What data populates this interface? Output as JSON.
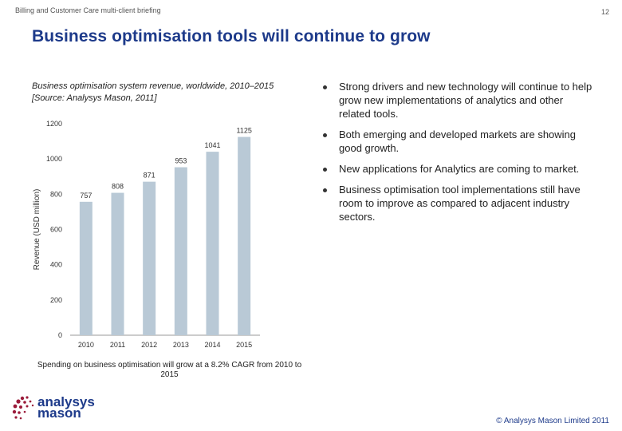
{
  "header": {
    "left": "Billing and Customer Care multi-client briefing",
    "page_number": "12"
  },
  "title": "Business optimisation tools will continue to grow",
  "chart_caption": "Business optimisation system revenue, worldwide, 2010–2015 [Source: Analysys Mason, 2011]",
  "chart_data": {
    "type": "bar",
    "categories": [
      "2010",
      "2011",
      "2012",
      "2013",
      "2014",
      "2015"
    ],
    "values": [
      757,
      808,
      871,
      953,
      1041,
      1125
    ],
    "data_labels": [
      "757",
      "808",
      "871",
      "953",
      "1041",
      "1125"
    ],
    "title": "",
    "xlabel": "",
    "ylabel": "Revenue (USD million)",
    "ylim": [
      0,
      1200
    ],
    "yticks": [
      "0",
      "200",
      "400",
      "600",
      "800",
      "1000",
      "1200"
    ],
    "bar_color": "#b9c9d6",
    "grid": false
  },
  "chart_footnote": "Spending on business optimisation will grow at a 8.2% CAGR from 2010 to 2015",
  "bullets": [
    "Strong drivers and new technology will continue to help grow new implementations of analytics and other related tools.",
    "Both emerging and developed markets are showing good growth.",
    "New applications for Analytics are coming to market.",
    "Business optimisation tool implementations still have room to improve as compared to adjacent industry sectors."
  ],
  "logo": {
    "line1": "analysys",
    "line2": "mason"
  },
  "footer": {
    "copyright": "© Analysys Mason Limited 2011"
  },
  "colors": {
    "title": "#1d3a8a",
    "logo_dots": "#9b1b3a",
    "bars": "#b9c9d6"
  }
}
